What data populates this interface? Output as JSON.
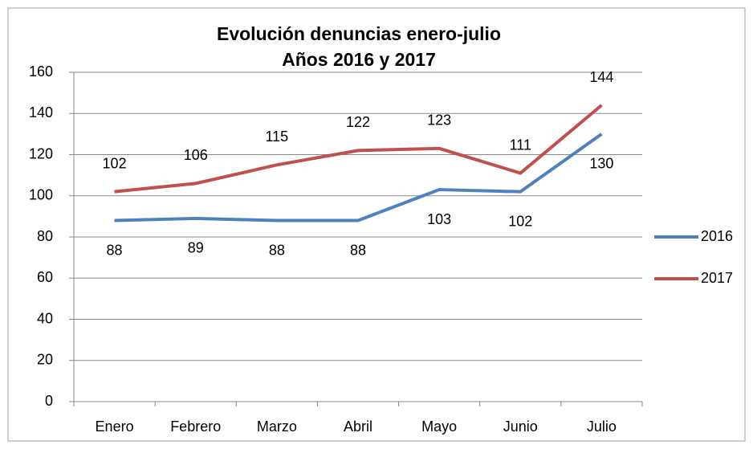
{
  "chart_data": {
    "type": "line",
    "title": "Evolución denuncias enero-julio",
    "subtitle": "Años 2016 y 2017",
    "categories": [
      "Enero",
      "Febrero",
      "Marzo",
      "Abril",
      "Mayo",
      "Junio",
      "Julio"
    ],
    "series": [
      {
        "name": "2016",
        "color": "#4f81bd",
        "values": [
          88,
          89,
          88,
          88,
          103,
          102,
          130
        ]
      },
      {
        "name": "2017",
        "color": "#c0504d",
        "values": [
          102,
          106,
          115,
          122,
          123,
          111,
          144
        ]
      }
    ],
    "ylim": [
      0,
      160
    ],
    "yticks": [
      0,
      20,
      40,
      60,
      80,
      100,
      120,
      140,
      160
    ],
    "grid": true,
    "legend": "right"
  }
}
